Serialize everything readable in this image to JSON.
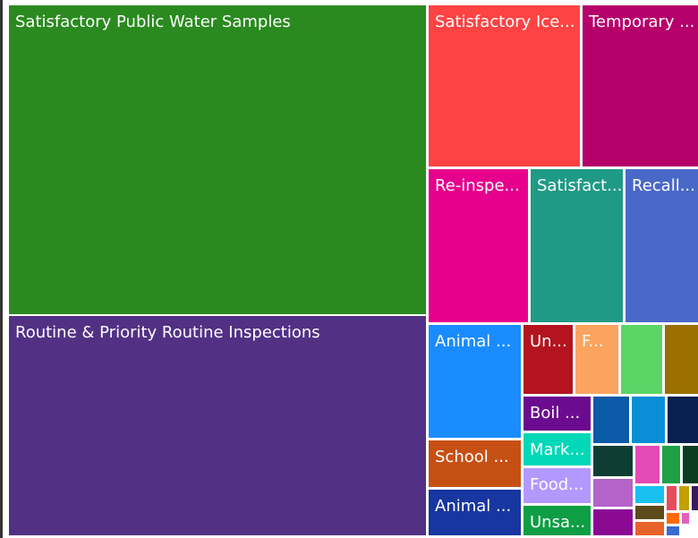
{
  "tiles": [
    {
      "label": "Satisfactory Public Water Samples",
      "color": "#2a8a1f"
    },
    {
      "label": "Routine & Priority Routine Inspections",
      "color": "#523185"
    },
    {
      "label": "Satisfactory Ice...",
      "color": "#fd4343"
    },
    {
      "label": "Temporary ...",
      "color": "#b5006a"
    },
    {
      "label": "Re-inspe...",
      "color": "#e6008c"
    },
    {
      "label": "Satisfact...",
      "color": "#1f9a86"
    },
    {
      "label": "Recall...",
      "color": "#4a68c8"
    },
    {
      "label": "Animal ...",
      "color": "#1a8cff"
    },
    {
      "label": "Un...",
      "color": "#b3141f"
    },
    {
      "label": "F...",
      "color": "#fca35f"
    },
    {
      "color": "#5ad566"
    },
    {
      "color": "#9a6f00"
    },
    {
      "label": "School ...",
      "color": "#c65014"
    },
    {
      "label": "Animal ...",
      "color": "#1736a0"
    },
    {
      "label": "Boil ...",
      "color": "#6b0b8f"
    },
    {
      "label": "Mark...",
      "color": "#00d8b8"
    },
    {
      "label": "Food...",
      "color": "#b399ff"
    },
    {
      "label": "Unsa...",
      "color": "#0e9e44"
    },
    {
      "color": "#0a5aa8"
    },
    {
      "color": "#0a8fd6"
    },
    {
      "color": "#06204f"
    },
    {
      "color": "#0e3e33"
    },
    {
      "color": "#e44ab5"
    },
    {
      "color": "#1ea048"
    },
    {
      "color": "#0a3d20"
    },
    {
      "color": "#b463c8"
    },
    {
      "color": "#8a0a94"
    },
    {
      "color": "#18c0f0"
    },
    {
      "color": "#e84b5a"
    },
    {
      "color": "#c4a000"
    },
    {
      "color": "#3a1a5a"
    },
    {
      "color": "#5c4a1a"
    },
    {
      "color": "#e8632a"
    },
    {
      "color": "#ff6a00"
    },
    {
      "color": "#e060c0"
    },
    {
      "color": "#3a6ad0"
    }
  ]
}
